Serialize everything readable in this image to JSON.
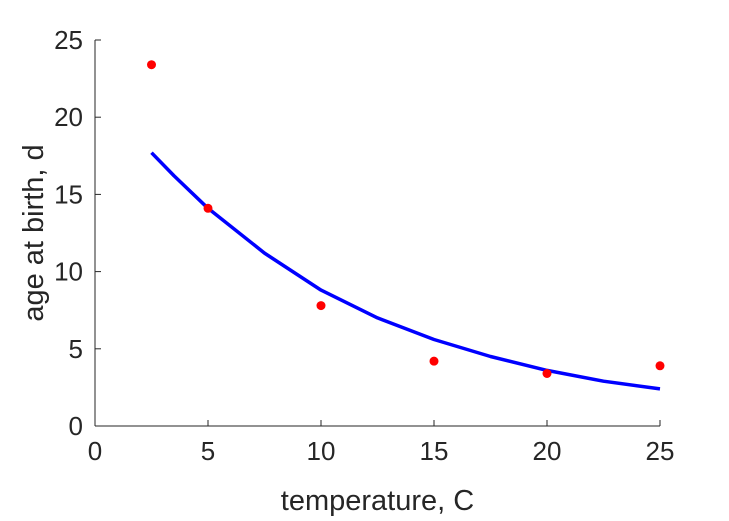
{
  "chart_data": {
    "type": "scatter",
    "title": "",
    "xlabel": "temperature, C",
    "ylabel": "age at birth, d",
    "xlim": [
      0,
      25
    ],
    "ylim": [
      0,
      25
    ],
    "xticks": [
      0,
      5,
      10,
      15,
      20,
      25
    ],
    "yticks": [
      0,
      5,
      10,
      15,
      20,
      25
    ],
    "grid": false,
    "series": [
      {
        "type": "scatter",
        "color": "#ff0000",
        "points": [
          {
            "x": 2.5,
            "y": 23.4
          },
          {
            "x": 5,
            "y": 14.1
          },
          {
            "x": 10,
            "y": 7.8
          },
          {
            "x": 15,
            "y": 4.2
          },
          {
            "x": 20,
            "y": 3.4
          },
          {
            "x": 25,
            "y": 3.9
          }
        ]
      },
      {
        "type": "line",
        "color": "#0000ff",
        "points": [
          {
            "x": 2.5,
            "y": 17.7
          },
          {
            "x": 3.5,
            "y": 16.2
          },
          {
            "x": 5,
            "y": 14.1
          },
          {
            "x": 7.5,
            "y": 11.2
          },
          {
            "x": 10,
            "y": 8.8
          },
          {
            "x": 12.5,
            "y": 7.0
          },
          {
            "x": 15,
            "y": 5.6
          },
          {
            "x": 17.5,
            "y": 4.5
          },
          {
            "x": 20,
            "y": 3.6
          },
          {
            "x": 22.5,
            "y": 2.9
          },
          {
            "x": 25,
            "y": 2.4
          }
        ]
      }
    ]
  }
}
